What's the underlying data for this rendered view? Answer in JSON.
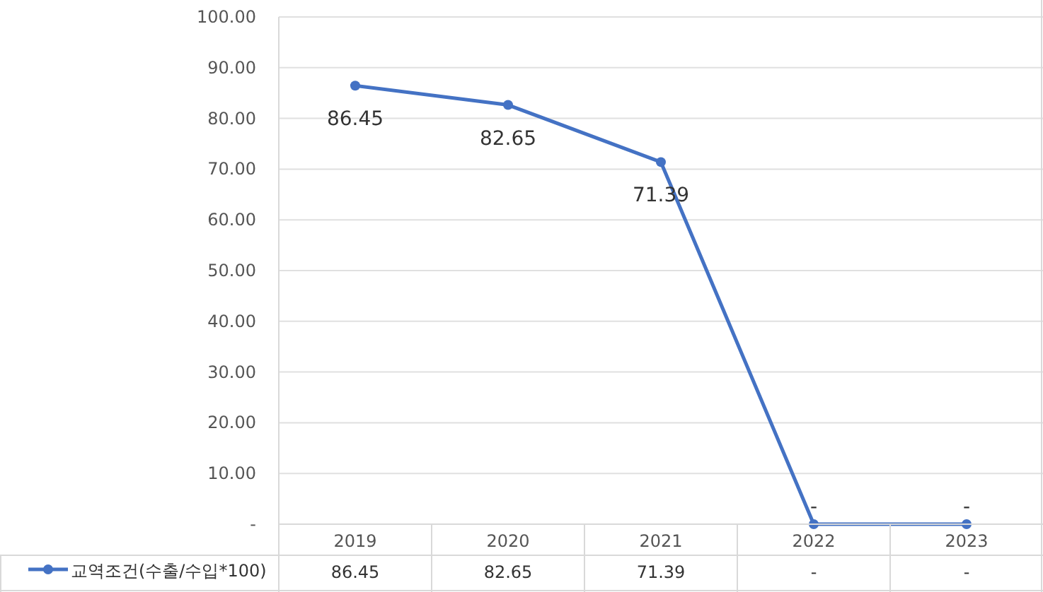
{
  "chart_data": {
    "type": "line",
    "categories": [
      "2019",
      "2020",
      "2021",
      "2022",
      "2023"
    ],
    "series": [
      {
        "name": "교역조건(수출/수입*100)",
        "color": "#4472c4",
        "values": [
          86.45,
          82.65,
          71.39,
          0,
          0
        ],
        "value_labels": [
          "86.45",
          "82.65",
          "71.39",
          "-",
          "-"
        ]
      }
    ],
    "ylim": [
      0,
      100
    ],
    "yticks": [
      {
        "value": 0,
        "label": "-"
      },
      {
        "value": 10,
        "label": "10.00"
      },
      {
        "value": 20,
        "label": "20.00"
      },
      {
        "value": 30,
        "label": "30.00"
      },
      {
        "value": 40,
        "label": "40.00"
      },
      {
        "value": 50,
        "label": "50.00"
      },
      {
        "value": 60,
        "label": "60.00"
      },
      {
        "value": 70,
        "label": "70.00"
      },
      {
        "value": 80,
        "label": "80.00"
      },
      {
        "value": 90,
        "label": "90.00"
      },
      {
        "value": 100,
        "label": "100.00"
      }
    ],
    "grid": "y",
    "marker": "circle",
    "line_style": "solid",
    "legend": "bottom"
  }
}
